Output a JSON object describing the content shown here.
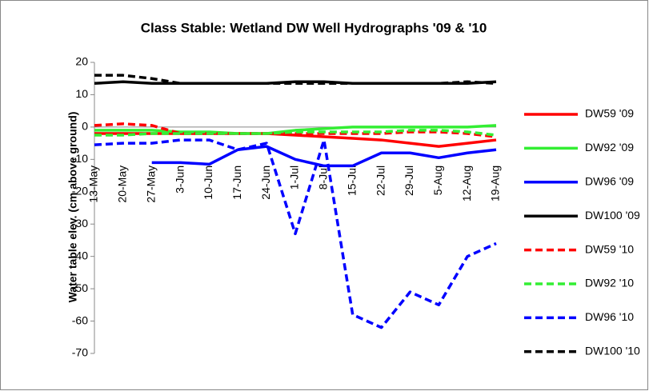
{
  "chart_data": {
    "type": "line",
    "title": "Class Stable: Wetland DW Well Hydrographs '09 & '10",
    "y_label": "Water table elev. (cm above ground)",
    "categories": [
      "13-May",
      "20-May",
      "27-May",
      "3-Jun",
      "10-Jun",
      "17-Jun",
      "24-Jun",
      "1-Jul",
      "8-Jul",
      "15-Jul",
      "22-Jul",
      "29-Jul",
      "5-Aug",
      "12-Aug",
      "19-Aug"
    ],
    "ylim": [
      -70,
      20
    ],
    "yticks": [
      -70,
      -60,
      -50,
      -40,
      -30,
      -20,
      -10,
      0,
      10,
      20
    ],
    "grid": false,
    "legend": "right",
    "series": [
      {
        "name": "DW59 '09",
        "color": "#ff0000",
        "dashed": false,
        "values": [
          -2,
          -2,
          -2,
          -2,
          -2,
          -2,
          -2,
          -2.5,
          -3,
          -3.5,
          -4,
          -5,
          -6,
          -5,
          -4
        ]
      },
      {
        "name": "DW92 '09",
        "color": "#33ee33",
        "dashed": false,
        "values": [
          -1,
          -1,
          -1,
          -1.5,
          -1.5,
          -2,
          -2,
          -1,
          -0.5,
          0,
          0,
          0,
          0,
          0,
          0.5
        ]
      },
      {
        "name": "DW96 '09",
        "color": "#0000ff",
        "dashed": false,
        "values": [
          null,
          null,
          -11,
          -11,
          -11.5,
          -7,
          -6,
          -10,
          -12,
          -12,
          -8,
          -8,
          -9.5,
          -8,
          -7
        ]
      },
      {
        "name": "DW100 '09",
        "color": "#000000",
        "dashed": false,
        "values": [
          13.5,
          14,
          13.5,
          13.5,
          13.5,
          13.5,
          13.5,
          14,
          14,
          13.5,
          13.5,
          13.5,
          13.5,
          13.5,
          14
        ]
      },
      {
        "name": "DW59 '10",
        "color": "#ff0000",
        "dashed": true,
        "values": [
          0.5,
          1,
          0.5,
          -2,
          -2,
          -2,
          -2,
          -2,
          -2,
          -2,
          -2,
          -1.5,
          -1.5,
          -2,
          -3
        ]
      },
      {
        "name": "DW92 '10",
        "color": "#33ee33",
        "dashed": true,
        "values": [
          -2.5,
          -2.5,
          -2,
          -2,
          -2,
          -2,
          -2,
          -1.5,
          -1.5,
          -1.5,
          -1.5,
          -1,
          -1,
          -1.5,
          -2.5
        ]
      },
      {
        "name": "DW96 '10",
        "color": "#0000ff",
        "dashed": true,
        "values": [
          -5.5,
          -5,
          -5,
          -4,
          -4,
          -7,
          -5,
          -33,
          -4,
          -58,
          -62,
          -51,
          -55,
          -40,
          -36
        ]
      },
      {
        "name": "DW100 '10",
        "color": "#000000",
        "dashed": true,
        "values": [
          16,
          16,
          15,
          13.5,
          13.5,
          13.5,
          13.5,
          13.5,
          13.5,
          13.5,
          13.5,
          13.5,
          13.5,
          14,
          13.5
        ]
      }
    ]
  }
}
